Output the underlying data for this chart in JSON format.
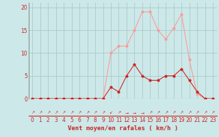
{
  "x": [
    0,
    1,
    2,
    3,
    4,
    5,
    6,
    7,
    8,
    9,
    10,
    11,
    12,
    13,
    14,
    15,
    16,
    17,
    18,
    19,
    20,
    21,
    22,
    23
  ],
  "moyen": [
    0,
    0,
    0,
    0,
    0,
    0,
    0,
    0,
    0,
    0,
    2.5,
    1.5,
    5,
    7.5,
    5,
    4,
    4,
    5,
    5,
    6.5,
    4,
    1.5,
    0,
    0
  ],
  "rafales": [
    0,
    0,
    0,
    0,
    0,
    0,
    0,
    0,
    0,
    0,
    10,
    11.5,
    11.5,
    15,
    19,
    19,
    15,
    13,
    15.5,
    18.5,
    8.5,
    1,
    0,
    0
  ],
  "bg_color": "#cce8e8",
  "grid_color": "#aacaca",
  "line_moyen_color": "#cc2222",
  "line_rafales_color": "#ff9999",
  "xlabel": "Vent moyen/en rafales ( km/h )",
  "yticks": [
    0,
    5,
    10,
    15,
    20
  ],
  "xlim": [
    -0.5,
    23.5
  ],
  "ylim": [
    0,
    21
  ],
  "tick_fontsize": 5.5,
  "xlabel_fontsize": 6.5,
  "arrow_chars": [
    "↗",
    "↗",
    "↗",
    "↗",
    "↗",
    "↗",
    "↗",
    "↗",
    "↗",
    "↗",
    "↙",
    "↗",
    "→",
    "→",
    "→",
    "↗",
    "↗",
    "↗",
    "↗",
    "↗",
    "↗",
    "↗",
    "↗",
    "↗"
  ]
}
